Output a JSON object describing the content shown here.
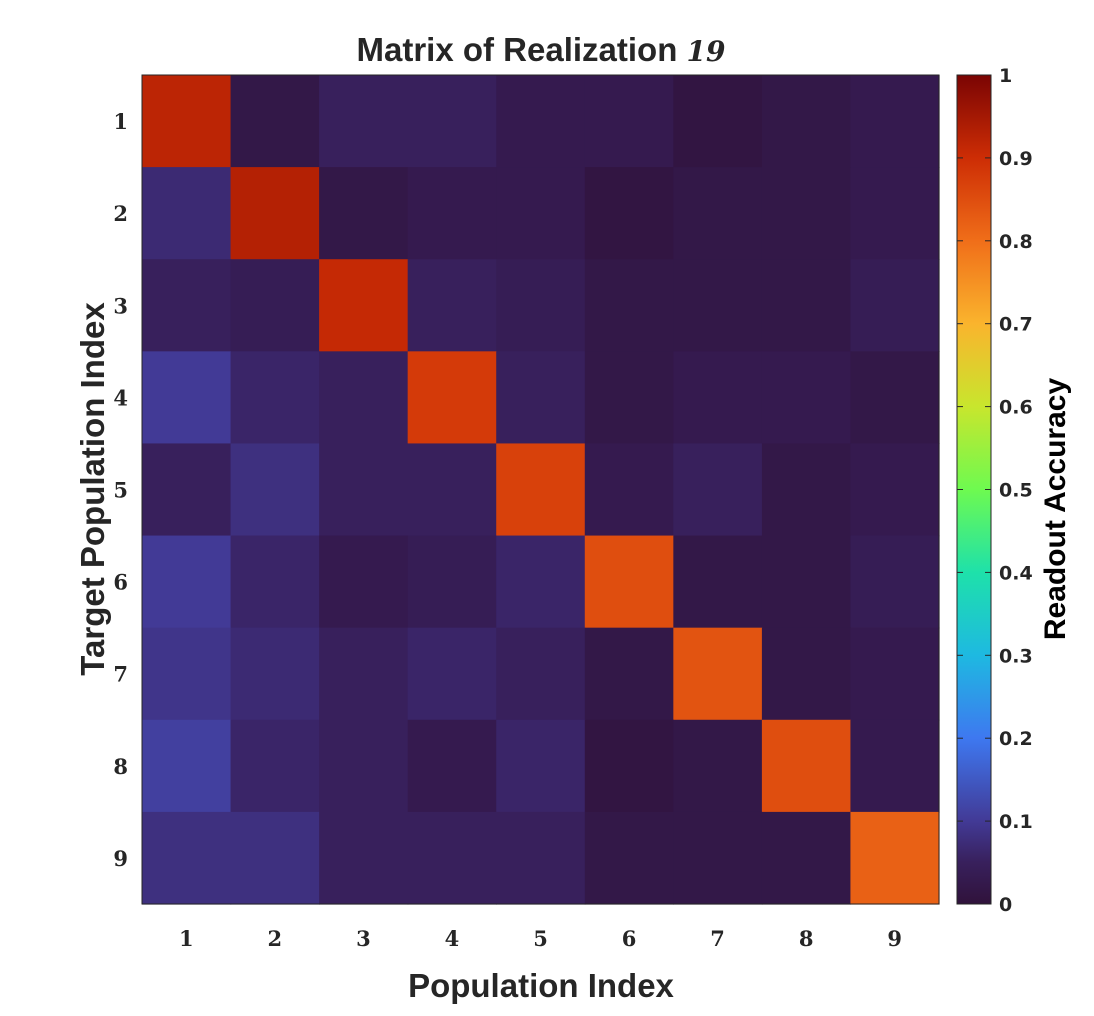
{
  "chart_data": {
    "type": "heatmap",
    "title": "Matrix of Realization",
    "title_number": "19",
    "xlabel": "Population Index",
    "ylabel": "Target Population Index",
    "colorbar_label": "Readout Accuracy",
    "x_categories": [
      "1",
      "2",
      "3",
      "4",
      "5",
      "6",
      "7",
      "8",
      "9"
    ],
    "y_categories": [
      "1",
      "2",
      "3",
      "4",
      "5",
      "6",
      "7",
      "8",
      "9"
    ],
    "colorbar_ticks": [
      "0",
      "0.1",
      "0.2",
      "0.3",
      "0.4",
      "0.5",
      "0.6",
      "0.7",
      "0.8",
      "0.9",
      "1"
    ],
    "color_range": [
      0,
      1
    ],
    "colormap": "turbo",
    "values": [
      [
        0.92,
        0.02,
        0.05,
        0.05,
        0.03,
        0.03,
        0.01,
        0.02,
        0.03
      ],
      [
        0.07,
        0.93,
        0.02,
        0.03,
        0.03,
        0.01,
        0.02,
        0.02,
        0.03
      ],
      [
        0.05,
        0.04,
        0.91,
        0.05,
        0.04,
        0.02,
        0.02,
        0.02,
        0.04
      ],
      [
        0.1,
        0.06,
        0.05,
        0.88,
        0.05,
        0.02,
        0.03,
        0.03,
        0.02
      ],
      [
        0.05,
        0.08,
        0.05,
        0.05,
        0.87,
        0.03,
        0.05,
        0.02,
        0.03
      ],
      [
        0.1,
        0.06,
        0.03,
        0.04,
        0.06,
        0.85,
        0.02,
        0.02,
        0.04
      ],
      [
        0.09,
        0.07,
        0.05,
        0.06,
        0.05,
        0.02,
        0.84,
        0.02,
        0.03
      ],
      [
        0.11,
        0.06,
        0.05,
        0.03,
        0.06,
        0.01,
        0.02,
        0.85,
        0.03
      ],
      [
        0.08,
        0.08,
        0.05,
        0.05,
        0.05,
        0.02,
        0.02,
        0.02,
        0.82
      ]
    ]
  }
}
